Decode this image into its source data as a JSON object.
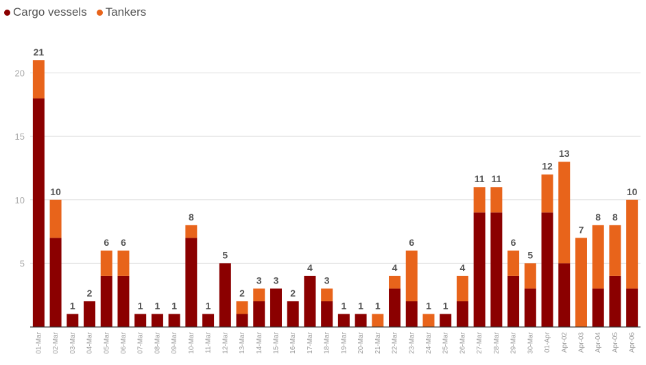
{
  "legend": {
    "cargo_label": "Cargo vessels",
    "tankers_label": "Tankers"
  },
  "colors": {
    "cargo": "#8b0000",
    "tankers": "#e8641b",
    "grid": "#dddddd",
    "axis": "#333333"
  },
  "chart_data": {
    "type": "bar",
    "stacked": true,
    "title": "",
    "xlabel": "",
    "ylabel": "",
    "ylim": [
      0,
      21
    ],
    "yticks": [
      5,
      10,
      15,
      20
    ],
    "grid": true,
    "legend_position": "top-left",
    "categories": [
      "01-Mar",
      "02-Mar",
      "03-Mar",
      "04-Mar",
      "05-Mar",
      "06-Mar",
      "07-Mar",
      "08-Mar",
      "09-Mar",
      "10-Mar",
      "11-Mar",
      "12-Mar",
      "13-Mar",
      "14-Mar",
      "15-Mar",
      "16-Mar",
      "17-Mar",
      "18-Mar",
      "19-Mar",
      "20-Mar",
      "21-Mar",
      "22-Mar",
      "23-Mar",
      "24-Mar",
      "25-Mar",
      "26-Mar",
      "27-Mar",
      "28-Mar",
      "29-Mar",
      "30-Mar",
      "01-Apr",
      "Apr-02",
      "Apr-03",
      "Apr-04",
      "Apr-05",
      "Apr-06"
    ],
    "series": [
      {
        "name": "Cargo vessels",
        "values": [
          18,
          7,
          1,
          2,
          4,
          4,
          1,
          1,
          1,
          7,
          1,
          5,
          1,
          2,
          3,
          2,
          4,
          2,
          1,
          1,
          0,
          3,
          2,
          0,
          1,
          2,
          9,
          9,
          4,
          3,
          9,
          5,
          0,
          3,
          4,
          3
        ]
      },
      {
        "name": "Tankers",
        "values": [
          3,
          3,
          0,
          0,
          2,
          2,
          0,
          0,
          0,
          1,
          0,
          0,
          1,
          1,
          0,
          0,
          0,
          1,
          0,
          0,
          1,
          1,
          4,
          1,
          0,
          2,
          2,
          2,
          2,
          2,
          3,
          8,
          7,
          5,
          4,
          7
        ]
      }
    ],
    "totals": [
      "21",
      "10",
      "1",
      "2",
      "6",
      "6",
      "1",
      "1",
      "1",
      "8",
      "1",
      "5",
      "2",
      "3",
      "3",
      "2",
      "4",
      "3",
      "1",
      "1",
      "1",
      "4",
      "6",
      "1",
      "1",
      "4",
      "11",
      "11",
      "6",
      "5",
      "12",
      "13",
      "7",
      "8",
      "8",
      "10"
    ]
  }
}
